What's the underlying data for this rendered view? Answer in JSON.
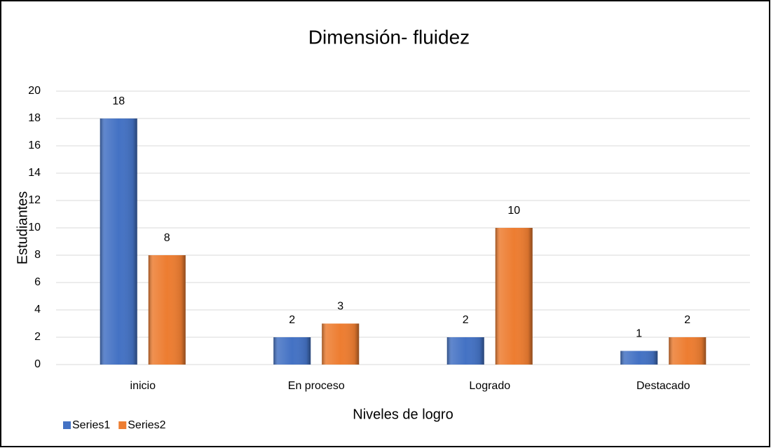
{
  "chart_data": {
    "type": "bar",
    "title": "Dimensión- fluidez",
    "x_label": "Niveles de logro",
    "y_label": "Estudiantes",
    "categories": [
      "inicio",
      "En proceso",
      "Logrado",
      "Destacado"
    ],
    "series": [
      {
        "name": "Series1",
        "color": "#4472c4",
        "values": [
          18,
          2,
          2,
          1
        ]
      },
      {
        "name": "Series2",
        "color": "#ed7d31",
        "values": [
          8,
          3,
          10,
          2
        ]
      }
    ],
    "ylim": [
      0,
      20
    ],
    "yticks": [
      0,
      2,
      4,
      6,
      8,
      10,
      12,
      14,
      16,
      18,
      20
    ],
    "grid": true,
    "legend": "bottom-left"
  }
}
